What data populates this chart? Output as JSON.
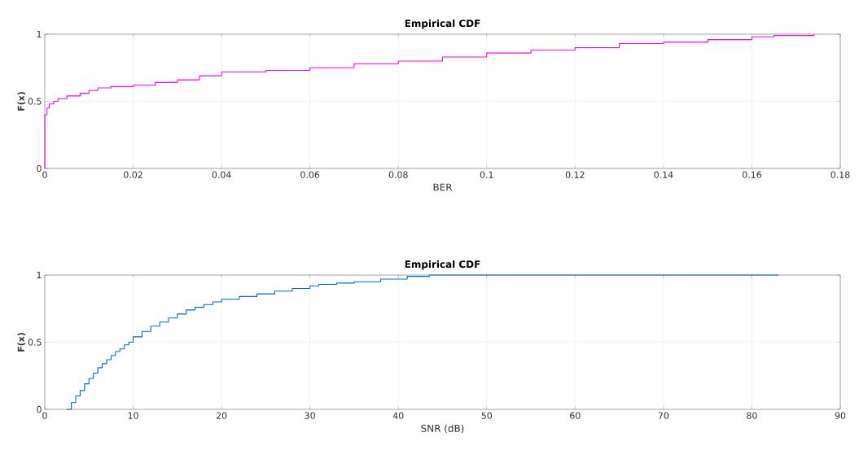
{
  "chart_data": [
    {
      "type": "step",
      "title": "Empirical CDF",
      "xlabel": "BER",
      "ylabel": "F(x)",
      "color": "#ff00ff",
      "grid": true,
      "x": [
        0,
        0,
        0.0005,
        0.001,
        0.002,
        0.003,
        0.005,
        0.008,
        0.01,
        0.012,
        0.015,
        0.02,
        0.025,
        0.03,
        0.035,
        0.04,
        0.05,
        0.06,
        0.07,
        0.08,
        0.09,
        0.1,
        0.11,
        0.12,
        0.13,
        0.14,
        0.15,
        0.16,
        0.165,
        0.174
      ],
      "values": [
        0,
        0.4,
        0.45,
        0.48,
        0.5,
        0.52,
        0.54,
        0.56,
        0.58,
        0.6,
        0.61,
        0.62,
        0.64,
        0.66,
        0.69,
        0.72,
        0.73,
        0.75,
        0.78,
        0.8,
        0.83,
        0.86,
        0.88,
        0.9,
        0.93,
        0.94,
        0.96,
        0.98,
        0.99,
        1
      ],
      "xlim": [
        0,
        0.18
      ],
      "ylim": [
        0,
        1
      ],
      "xticks": [
        0,
        0.02,
        0.04,
        0.06,
        0.08,
        0.1,
        0.12,
        0.14,
        0.16,
        0.18
      ],
      "yticks": [
        0,
        0.5,
        1
      ]
    },
    {
      "type": "step",
      "title": "Empirical CDF",
      "xlabel": "SNR (dB)",
      "ylabel": "F(x)",
      "color": "#0072bd",
      "grid": true,
      "x": [
        2.5,
        3,
        3.5,
        4,
        4.5,
        5,
        5.5,
        6,
        6.5,
        7,
        7.5,
        8,
        8.5,
        9,
        9.5,
        10,
        11,
        12,
        13,
        14,
        15,
        16,
        17,
        18,
        19,
        20,
        22,
        24,
        26,
        28,
        30,
        31,
        33,
        35,
        38,
        41,
        43.5,
        83
      ],
      "values": [
        0,
        0.05,
        0.1,
        0.14,
        0.19,
        0.23,
        0.27,
        0.31,
        0.34,
        0.37,
        0.4,
        0.43,
        0.45,
        0.48,
        0.5,
        0.54,
        0.58,
        0.62,
        0.65,
        0.68,
        0.71,
        0.74,
        0.76,
        0.78,
        0.8,
        0.82,
        0.84,
        0.86,
        0.88,
        0.9,
        0.92,
        0.93,
        0.94,
        0.95,
        0.97,
        0.99,
        1,
        1
      ],
      "xlim": [
        0,
        90
      ],
      "ylim": [
        0,
        1
      ],
      "xticks": [
        0,
        10,
        20,
        30,
        40,
        50,
        60,
        70,
        80,
        90
      ],
      "yticks": [
        0,
        0.5,
        1
      ]
    }
  ]
}
